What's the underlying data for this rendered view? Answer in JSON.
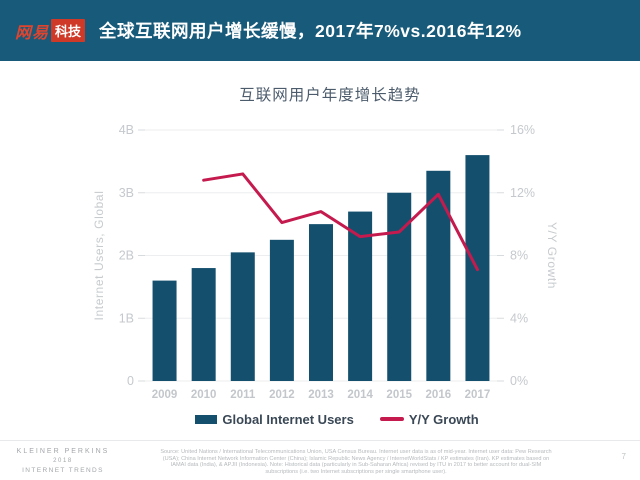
{
  "header": {
    "bg_color": "#175a7a",
    "logo": {
      "part1": "网易",
      "part1_color": "#e0442f",
      "part2": "科技",
      "part2_bg_color": "#cf3a28"
    },
    "title": "全球互联网用户增长缓慢，2017年7%vs.2016年12%"
  },
  "chart_data": {
    "type": "bar",
    "title": "互联网用户年度增长趋势",
    "categories": [
      "2009",
      "2010",
      "2011",
      "2012",
      "2013",
      "2014",
      "2015",
      "2016",
      "2017"
    ],
    "series": [
      {
        "name": "Global Internet Users",
        "type": "bar",
        "axis": "left",
        "color": "#14506e",
        "values": [
          1.6,
          1.8,
          2.05,
          2.25,
          2.5,
          2.7,
          3.0,
          3.35,
          3.6
        ]
      },
      {
        "name": "Y/Y Growth",
        "type": "line",
        "axis": "right",
        "color": "#c41a4d",
        "x": [
          "2010",
          "2011",
          "2012",
          "2013",
          "2014",
          "2015",
          "2016",
          "2017"
        ],
        "values": [
          12.8,
          13.2,
          10.1,
          10.8,
          9.2,
          9.5,
          11.9,
          7.1
        ]
      }
    ],
    "left_axis": {
      "label": "Internet Users, Global",
      "ticks": [
        "4B",
        "3B",
        "2B",
        "1B",
        "0"
      ],
      "range": [
        0,
        4
      ]
    },
    "right_axis": {
      "label": "Y/Y Growth",
      "ticks": [
        "16%",
        "12%",
        "8%",
        "4%",
        "0%"
      ],
      "range": [
        0,
        16
      ]
    },
    "grid": true,
    "legend_position": "bottom"
  },
  "footer": {
    "brand_line1": "KLEINER PERKINS",
    "brand_line2": "2018",
    "brand_line3": "INTERNET TRENDS",
    "source_text": "Source: United Nations / International Telecommunications Union, USA Census Bureau. Internet user data is as of mid-year. Internet user data: Pew Research (USA); China Internet Network Information Center (China); Islamic Republic News Agency / InternetWorldStats / KP estimates (Iran). KP estimates based on IAMAI data (India), & APJII (Indonesia). Note: Historical data (particularly in Sub-Saharan Africa) revised by ITU in 2017 to better account for dual-SIM subscriptions (i.e. two Internet subscriptions per single smartphone user).",
    "page_number": "7"
  }
}
